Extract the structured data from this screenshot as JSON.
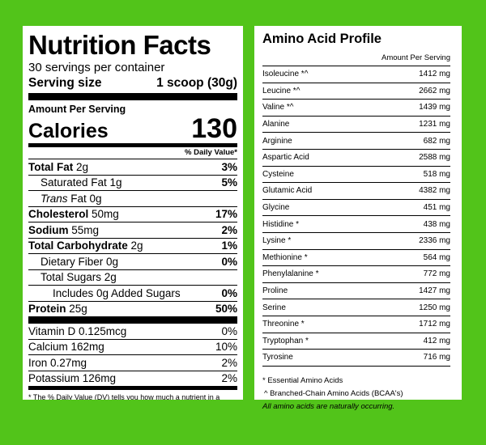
{
  "nutrition": {
    "title": "Nutrition Facts",
    "servings": "30 servings per container",
    "serving_size_label": "Serving size",
    "serving_size_value": "1 scoop (30g)",
    "amount_per_serving": "Amount Per Serving",
    "calories_label": "Calories",
    "calories_value": "130",
    "dv_header": "% Daily Value*",
    "rows": [
      {
        "bold": "Total Fat",
        "italic": "",
        "text": " 2g",
        "dv": "3%"
      },
      {
        "bold": "",
        "italic": "",
        "text": "Saturated Fat 1g",
        "dv": "5%"
      },
      {
        "bold": "",
        "italic": "Trans",
        "text": " Fat 0g",
        "dv": ""
      },
      {
        "bold": "Cholesterol",
        "italic": "",
        "text": " 50mg",
        "dv": "17%"
      },
      {
        "bold": "Sodium",
        "italic": "",
        "text": " 55mg",
        "dv": "2%"
      },
      {
        "bold": "Total Carbohydrate",
        "italic": "",
        "text": " 2g",
        "dv": "1%"
      },
      {
        "bold": "",
        "italic": "",
        "text": "Dietary Fiber 0g",
        "dv": "0%"
      },
      {
        "bold": "",
        "italic": "",
        "text": "Total Sugars 2g",
        "dv": ""
      },
      {
        "bold": "",
        "italic": "",
        "text": "Includes 0g Added Sugars",
        "dv": "0%"
      },
      {
        "bold": "Protein",
        "italic": "",
        "text": " 25g",
        "dv": "50%"
      }
    ],
    "vitamins": [
      {
        "name": "Vitamin D 0.125mcg",
        "dv": "0%"
      },
      {
        "name": "Calcium 162mg",
        "dv": "10%"
      },
      {
        "name": "Iron 0.27mg",
        "dv": "2%"
      },
      {
        "name": "Potassium 126mg",
        "dv": "2%"
      }
    ],
    "footnote": "* The % Daily Value (DV) tells you how much a nutrient in a"
  },
  "amino": {
    "title": "Amino Acid Profile",
    "header": "Amount Per Serving",
    "rows": [
      {
        "name": "Isoleucine *^",
        "value": "1412 mg"
      },
      {
        "name": "Leucine *^",
        "value": "2662 mg"
      },
      {
        "name": "Valine *^",
        "value": "1439 mg"
      },
      {
        "name": "Alanine",
        "value": "1231 mg"
      },
      {
        "name": "Arginine",
        "value": "682 mg"
      },
      {
        "name": "Aspartic Acid",
        "value": "2588 mg"
      },
      {
        "name": "Cysteine",
        "value": "518 mg"
      },
      {
        "name": "Glutamic Acid",
        "value": "4382 mg"
      },
      {
        "name": "Glycine",
        "value": "451 mg"
      },
      {
        "name": "Histidine *",
        "value": "438 mg"
      },
      {
        "name": "Lysine *",
        "value": "2336 mg"
      },
      {
        "name": "Methionine *",
        "value": "564 mg"
      },
      {
        "name": "Phenylalanine *",
        "value": "772 mg"
      },
      {
        "name": "Proline",
        "value": "1427 mg"
      },
      {
        "name": "Serine",
        "value": "1250 mg"
      },
      {
        "name": "Threonine *",
        "value": "1712 mg"
      },
      {
        "name": "Tryptophan *",
        "value": "412 mg"
      },
      {
        "name": "Tyrosine",
        "value": "716 mg"
      }
    ],
    "note_essential": "* Essential Amino Acids",
    "note_bcaa": "^ Branched-Chain Amino Acids (BCAA's)",
    "note_natural": "All amino acids are naturally occurring."
  }
}
